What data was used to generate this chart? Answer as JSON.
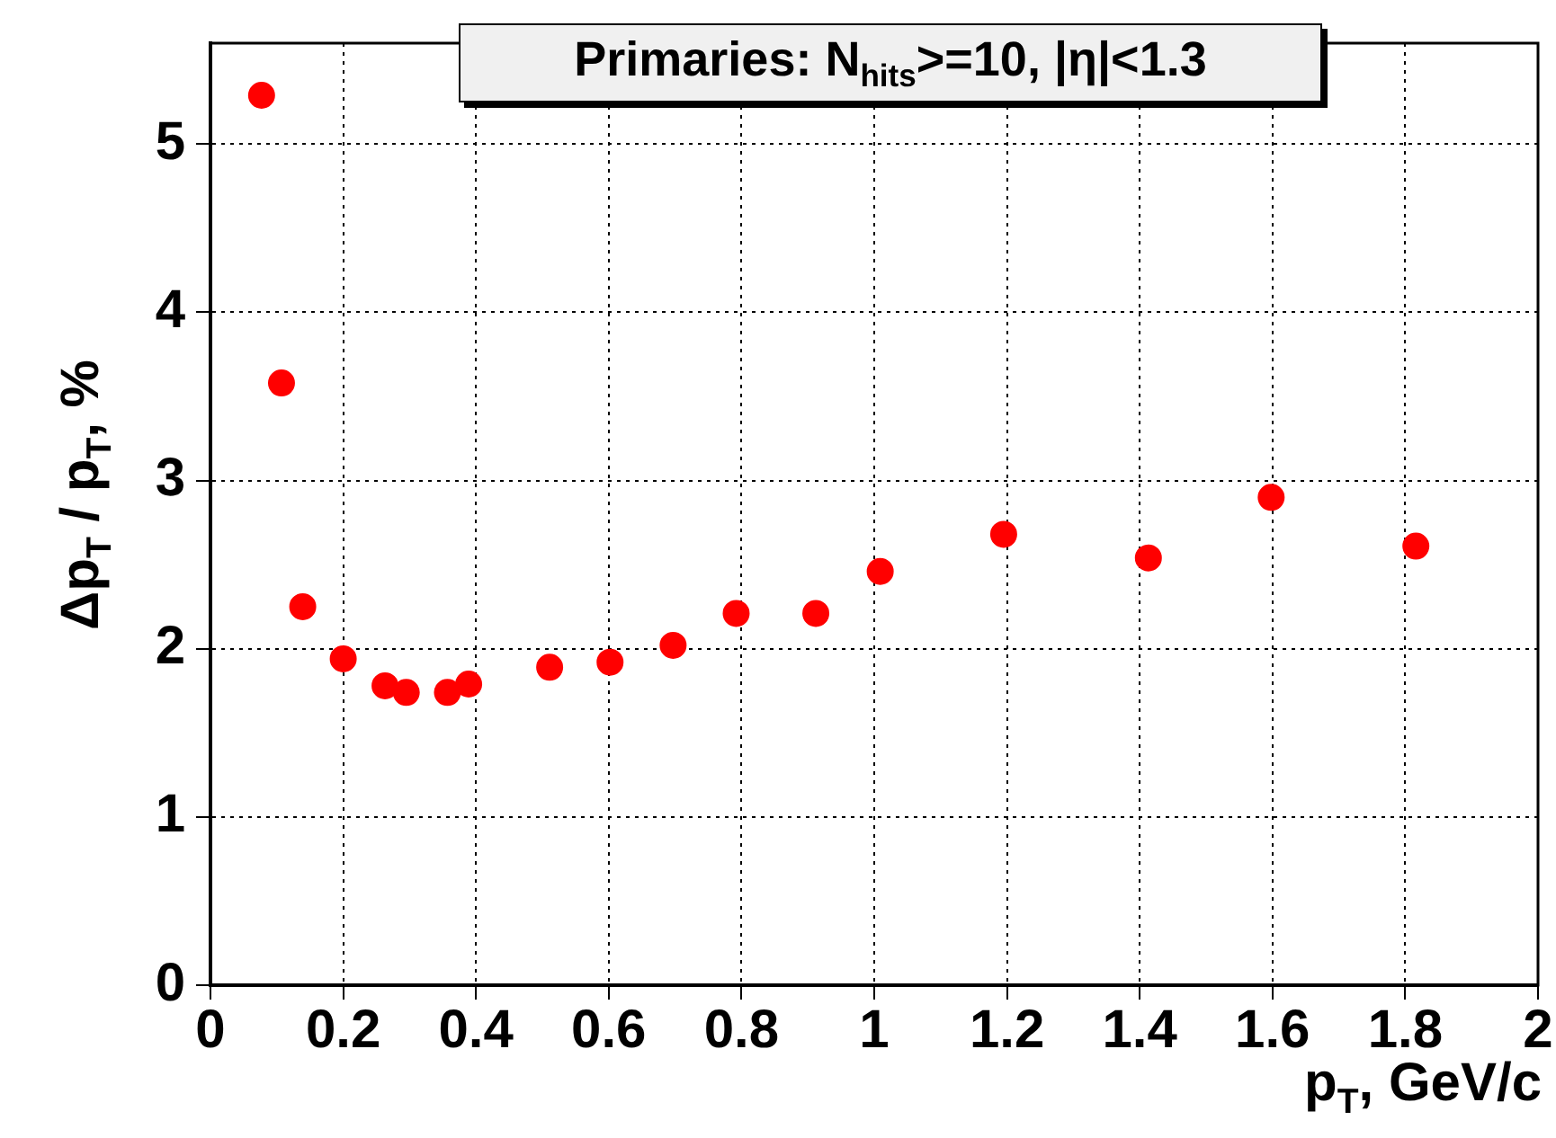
{
  "chart_data": {
    "type": "scatter",
    "title": "Primaries: N$_{hits}$>=10, |η|<1.3",
    "xlabel": "p$_{T}$, GeV/c",
    "ylabel": "Δp$_{T}$ / p$_{T}$, %",
    "x": [
      0.077,
      0.107,
      0.139,
      0.2,
      0.263,
      0.295,
      0.357,
      0.389,
      0.511,
      0.602,
      0.697,
      0.792,
      0.912,
      1.009,
      1.195,
      1.413,
      1.598,
      1.816
    ],
    "values": [
      5.29,
      3.58,
      2.25,
      1.94,
      1.78,
      1.74,
      1.74,
      1.79,
      1.89,
      1.92,
      2.02,
      2.21,
      2.21,
      2.46,
      2.68,
      2.54,
      2.9,
      2.61
    ],
    "color": "#ff0000",
    "marker": "circle",
    "grid": true,
    "xlim": [
      0,
      2
    ],
    "xticks": [
      0,
      0.2,
      0.4,
      0.6,
      0.8,
      1,
      1.2,
      1.4,
      1.6,
      1.8,
      2
    ],
    "ylim": [
      0,
      5.6
    ],
    "yticks": [
      0,
      1,
      2,
      3,
      4,
      5
    ]
  }
}
